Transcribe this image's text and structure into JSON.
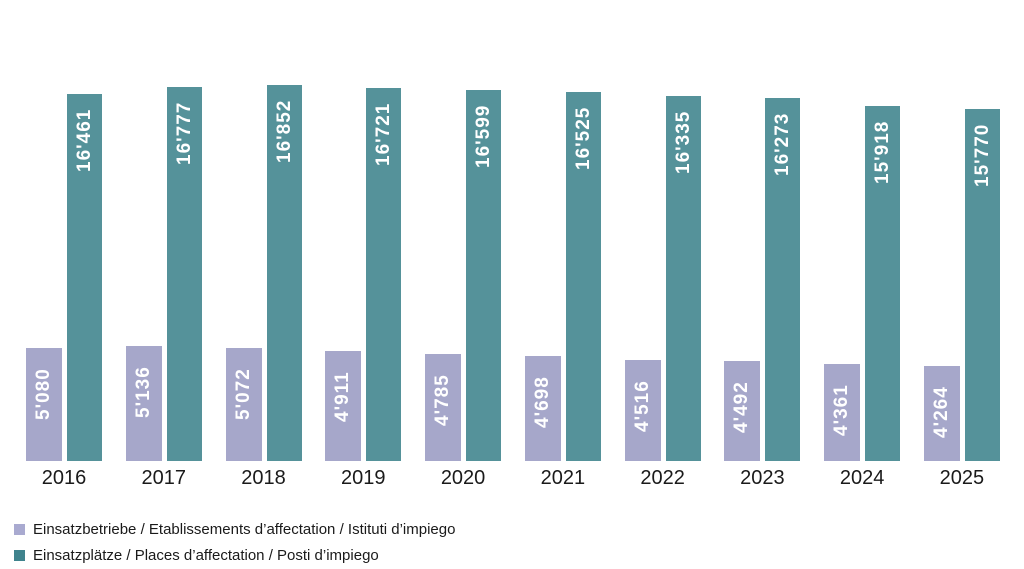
{
  "chart_data": {
    "type": "bar",
    "title": "",
    "xlabel": "",
    "ylabel": "",
    "categories": [
      "2016",
      "2017",
      "2018",
      "2019",
      "2020",
      "2021",
      "2022",
      "2023",
      "2024",
      "2025"
    ],
    "series": [
      {
        "name": "Einsatzbetriebe / Etablissements d’affectation / Istituti d’impiego",
        "color": "#A6A7CA",
        "legend_color": "#A9AAD0",
        "values": [
          5080,
          5136,
          5072,
          4911,
          4785,
          4698,
          4516,
          4492,
          4361,
          4264
        ],
        "value_labels": [
          "5'080",
          "5'136",
          "5'072",
          "4'911",
          "4'785",
          "4'698",
          "4'516",
          "4'492",
          "4'361",
          "4'264"
        ]
      },
      {
        "name": "Einsatzplätze / Places d’affectation / Posti d’impiego",
        "color": "#55929A",
        "legend_color": "#3F838D",
        "values": [
          16461,
          16777,
          16852,
          16721,
          16599,
          16525,
          16335,
          16273,
          15918,
          15770
        ],
        "value_labels": [
          "16'461",
          "16'777",
          "16'852",
          "16'721",
          "16'599",
          "16'525",
          "16'335",
          "16'273",
          "15'918",
          "15'770"
        ]
      }
    ],
    "ylim": [
      0,
      20650
    ],
    "grid": false,
    "axes_visible": false,
    "legend_position": "bottom-left",
    "value_labels_position": "inside-top-rotated",
    "value_label_color": "#FFFFFF",
    "axis_text_color": "#1A1A1A",
    "background_color": "#FFFFFF"
  }
}
